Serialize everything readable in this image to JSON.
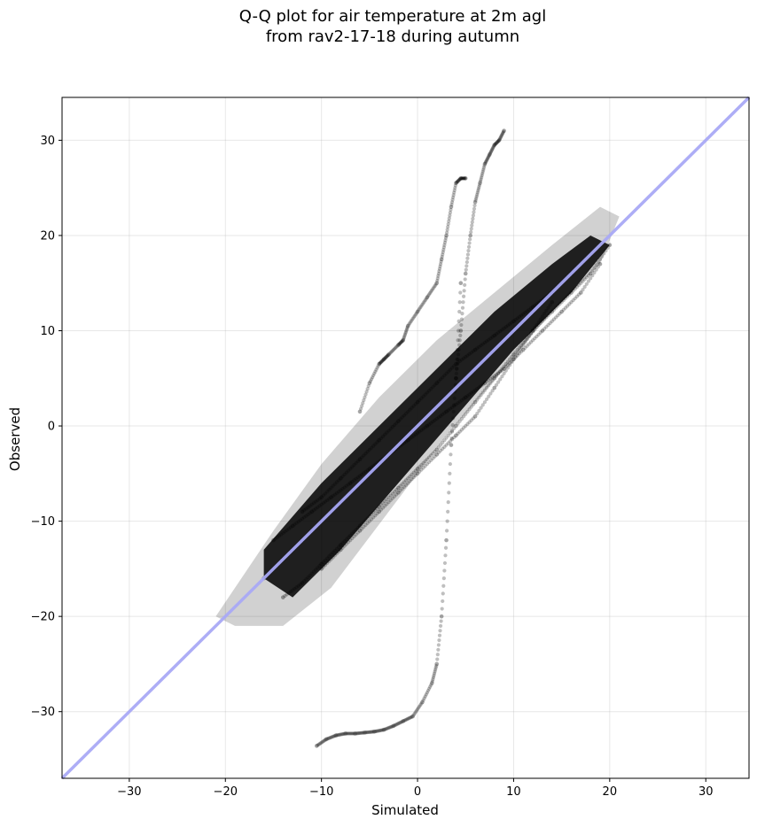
{
  "chart_data": {
    "type": "scatter",
    "title": [
      "Q-Q plot for air temperature at 2m agl",
      "from rav2-17-18 during autumn"
    ],
    "xlabel": "Simulated",
    "ylabel": "Observed",
    "xlim": [
      -37,
      34.5
    ],
    "ylim": [
      -37,
      34.5
    ],
    "xticks": [
      -30,
      -20,
      -10,
      0,
      10,
      20,
      30
    ],
    "yticks": [
      -30,
      -20,
      -10,
      0,
      10,
      20,
      30
    ],
    "xtick_labels": [
      "−30",
      "−20",
      "−10",
      "0",
      "10",
      "20",
      "30"
    ],
    "ytick_labels": [
      "−30",
      "−20",
      "−10",
      "0",
      "10",
      "20",
      "30"
    ],
    "grid": true,
    "reference_line": {
      "from": [
        -37,
        -37
      ],
      "to": [
        34.5,
        34.5
      ],
      "color": "#a9a9f5"
    },
    "point_color": "#000000",
    "series": [
      {
        "x": [
          -16,
          -14,
          -12,
          -10,
          -8,
          -6,
          -4,
          -2,
          0,
          2,
          4,
          6,
          8,
          10,
          12,
          14,
          16,
          18
        ],
        "y": [
          -16,
          -14,
          -12,
          -10,
          -8,
          -6,
          -4,
          -2,
          0,
          2,
          4,
          6,
          8,
          10,
          12,
          14,
          16,
          18
        ]
      },
      {
        "x": [
          -15,
          -13,
          -11,
          -9,
          -7,
          -5,
          -3,
          -1,
          1,
          3,
          5,
          7,
          9,
          11,
          13,
          15,
          17,
          19
        ],
        "y": [
          -12,
          -10.5,
          -9,
          -7.5,
          -6,
          -4.5,
          -3,
          -1.5,
          0,
          1.5,
          3,
          4.5,
          6,
          8,
          10,
          12,
          14,
          17
        ]
      },
      {
        "x": [
          -14,
          -12,
          -10,
          -8,
          -6,
          -4,
          -2,
          0,
          2,
          4,
          6,
          8,
          10,
          12,
          14,
          16,
          18,
          20
        ],
        "y": [
          -18,
          -16.5,
          -14.5,
          -12.5,
          -10.5,
          -8.5,
          -6.5,
          -4.5,
          -2.5,
          0,
          2.5,
          5,
          7.5,
          10,
          12,
          14,
          16,
          19
        ]
      },
      {
        "x": [
          -12,
          -10,
          -8,
          -6,
          -4,
          -2,
          0,
          2,
          4,
          6,
          8,
          10,
          12,
          14,
          16
        ],
        "y": [
          -9,
          -7.5,
          -5.5,
          -3.5,
          -1.5,
          0.5,
          2.5,
          4.5,
          6.5,
          8,
          9.5,
          11,
          12.5,
          14,
          16
        ]
      },
      {
        "x": [
          -10,
          -8,
          -6,
          -4,
          -2,
          0,
          2,
          4,
          6,
          8,
          10,
          12,
          14
        ],
        "y": [
          -15,
          -13,
          -11,
          -9,
          -7,
          -5,
          -3,
          -1,
          1,
          4,
          7,
          10,
          13
        ]
      },
      {
        "x": [
          -10.5,
          -9.5,
          -8.5,
          -7.5,
          -6.5,
          -5.5,
          -4.5,
          -3.5,
          -2.5,
          -1.5,
          -0.5,
          0.5,
          1.5,
          2.0,
          2.5,
          3.0,
          3.5,
          4.0,
          4.5
        ],
        "y": [
          -33.6,
          -32.9,
          -32.5,
          -32.3,
          -32.3,
          -32.2,
          -32.1,
          -31.9,
          -31.5,
          -31.0,
          -30.5,
          -29.0,
          -27.0,
          -25.0,
          -20.0,
          -12.0,
          -2.0,
          5.0,
          15.0
        ]
      },
      {
        "x": [
          -6.0,
          -5.0,
          -4.0,
          -3.5,
          -3.0,
          -2.0,
          -1.5,
          -1.0,
          0.0,
          1.0,
          2.0,
          2.5,
          3.0,
          3.5,
          4.0,
          4.5,
          5.0
        ],
        "y": [
          1.5,
          4.5,
          6.5,
          7.0,
          7.5,
          8.5,
          9.0,
          10.5,
          12.0,
          13.5,
          15.0,
          17.5,
          20.0,
          23.0,
          25.5,
          26.0,
          26.0
        ]
      },
      {
        "x": [
          4.0,
          4.5,
          5.0,
          5.5,
          6.0,
          6.5,
          7.0,
          7.5,
          8.0,
          8.5,
          9.0
        ],
        "y": [
          5.0,
          10.0,
          16.0,
          20.0,
          23.5,
          25.5,
          27.5,
          28.5,
          29.5,
          30.0,
          31.0
        ]
      }
    ]
  }
}
